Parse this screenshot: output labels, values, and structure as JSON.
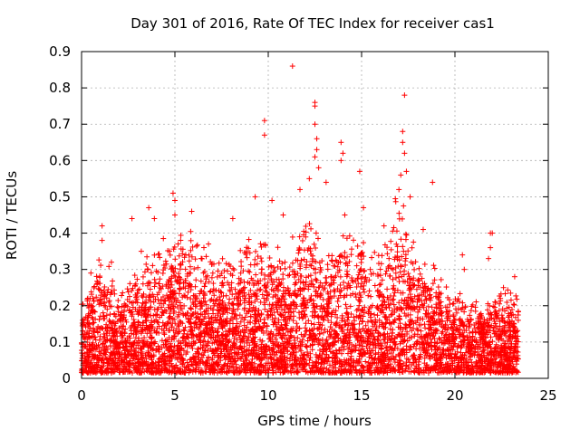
{
  "chart_data": {
    "type": "scatter",
    "title": "Day 301 of 2016, Rate Of TEC Index for receiver cas1",
    "xlabel": "GPS time / hours",
    "ylabel": "ROTI / TECUs",
    "xlim": [
      0,
      25
    ],
    "ylim": [
      0,
      0.9
    ],
    "x_ticks": [
      0,
      5,
      10,
      15,
      20,
      25
    ],
    "x_tick_labels": [
      "0",
      "5",
      "10",
      "15",
      "20",
      "25"
    ],
    "y_ticks": [
      0,
      0.1,
      0.2,
      0.3,
      0.4,
      0.5,
      0.6,
      0.7,
      0.8,
      0.9
    ],
    "y_tick_labels": [
      "0",
      "0.1",
      "0.2",
      "0.3",
      "0.4",
      "0.5",
      "0.6",
      "0.7",
      "0.8",
      "0.9"
    ],
    "grid": true,
    "marker": "plus",
    "color": "#ff0000",
    "x_data_range": [
      0.0,
      23.4
    ],
    "envelope": {
      "hours": [
        0,
        1,
        2,
        3,
        4,
        5,
        6,
        7,
        8,
        9,
        10,
        11,
        12,
        13,
        14,
        15,
        16,
        17,
        18,
        19,
        20,
        21,
        22,
        23,
        23.4
      ],
      "typical_max_roti": [
        0.18,
        0.3,
        0.22,
        0.26,
        0.33,
        0.4,
        0.34,
        0.3,
        0.3,
        0.34,
        0.36,
        0.3,
        0.42,
        0.32,
        0.38,
        0.34,
        0.3,
        0.48,
        0.3,
        0.26,
        0.22,
        0.18,
        0.2,
        0.22,
        0.2
      ]
    },
    "notable_points": [
      {
        "x": 0.5,
        "y": 0.29
      },
      {
        "x": 1.1,
        "y": 0.42
      },
      {
        "x": 1.1,
        "y": 0.38
      },
      {
        "x": 1.6,
        "y": 0.32
      },
      {
        "x": 2.7,
        "y": 0.44
      },
      {
        "x": 3.2,
        "y": 0.35
      },
      {
        "x": 3.6,
        "y": 0.47
      },
      {
        "x": 3.9,
        "y": 0.44
      },
      {
        "x": 4.9,
        "y": 0.51
      },
      {
        "x": 5.0,
        "y": 0.49
      },
      {
        "x": 5.0,
        "y": 0.45
      },
      {
        "x": 5.9,
        "y": 0.46
      },
      {
        "x": 6.8,
        "y": 0.37
      },
      {
        "x": 8.1,
        "y": 0.44
      },
      {
        "x": 9.3,
        "y": 0.5
      },
      {
        "x": 9.8,
        "y": 0.71
      },
      {
        "x": 9.8,
        "y": 0.67
      },
      {
        "x": 10.2,
        "y": 0.49
      },
      {
        "x": 10.8,
        "y": 0.45
      },
      {
        "x": 11.3,
        "y": 0.86
      },
      {
        "x": 11.7,
        "y": 0.52
      },
      {
        "x": 12.2,
        "y": 0.55
      },
      {
        "x": 12.5,
        "y": 0.76
      },
      {
        "x": 12.5,
        "y": 0.75
      },
      {
        "x": 12.5,
        "y": 0.7
      },
      {
        "x": 12.6,
        "y": 0.66
      },
      {
        "x": 12.6,
        "y": 0.63
      },
      {
        "x": 12.7,
        "y": 0.58
      },
      {
        "x": 12.5,
        "y": 0.61
      },
      {
        "x": 13.1,
        "y": 0.54
      },
      {
        "x": 13.9,
        "y": 0.65
      },
      {
        "x": 14.0,
        "y": 0.62
      },
      {
        "x": 13.9,
        "y": 0.6
      },
      {
        "x": 14.1,
        "y": 0.45
      },
      {
        "x": 14.9,
        "y": 0.57
      },
      {
        "x": 15.1,
        "y": 0.47
      },
      {
        "x": 16.2,
        "y": 0.42
      },
      {
        "x": 17.0,
        "y": 0.52
      },
      {
        "x": 17.1,
        "y": 0.56
      },
      {
        "x": 17.2,
        "y": 0.68
      },
      {
        "x": 17.2,
        "y": 0.65
      },
      {
        "x": 17.3,
        "y": 0.78
      },
      {
        "x": 17.3,
        "y": 0.62
      },
      {
        "x": 17.4,
        "y": 0.57
      },
      {
        "x": 17.6,
        "y": 0.5
      },
      {
        "x": 18.3,
        "y": 0.41
      },
      {
        "x": 18.8,
        "y": 0.54
      },
      {
        "x": 20.4,
        "y": 0.34
      },
      {
        "x": 20.5,
        "y": 0.3
      },
      {
        "x": 21.9,
        "y": 0.4
      },
      {
        "x": 22.0,
        "y": 0.4
      },
      {
        "x": 21.9,
        "y": 0.36
      },
      {
        "x": 21.8,
        "y": 0.33
      },
      {
        "x": 23.2,
        "y": 0.28
      },
      {
        "x": 22.6,
        "y": 0.25
      }
    ]
  }
}
